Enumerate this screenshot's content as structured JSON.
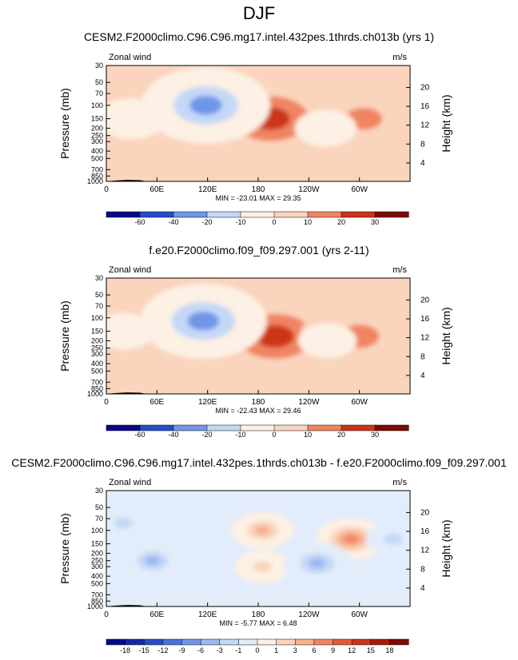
{
  "page": {
    "title": "DJF"
  },
  "chart_data": [
    {
      "type": "heatmap",
      "title": "CESM2.F2000climo.C96.C96.mg17.intel.432pes.1thrds.ch013b (yrs 1)",
      "variable": "Zonal wind",
      "units": "m/s",
      "xlabel": "",
      "ylabel": "Pressure (mb)",
      "ylabel_right": "Height (km)",
      "x_ticks": [
        "0",
        "60E",
        "120E",
        "180",
        "120W",
        "60W"
      ],
      "y_ticks": [
        "30",
        "50",
        "70",
        "100",
        "150",
        "200",
        "250",
        "300",
        "400",
        "500",
        "700",
        "850",
        "1000"
      ],
      "y_ticks_right": [
        "20",
        "16",
        "12",
        "8",
        "4"
      ],
      "y_scale": "log",
      "ylim": [
        1000,
        30
      ],
      "stats": "MIN = -23.01  MAX = 29.35",
      "colorbar_levels": [
        "-60",
        "-40",
        "-20",
        "-10",
        "0",
        "10",
        "20",
        "30"
      ],
      "features": [
        {
          "lon": 195,
          "p": 150,
          "value": 29.35,
          "kind": "max"
        },
        {
          "lon": 305,
          "p": 150,
          "value": 18,
          "kind": "max"
        },
        {
          "lon": 118,
          "p": 100,
          "value": -23.01,
          "kind": "min"
        },
        {
          "lon": 30,
          "p": 150,
          "value": -6,
          "kind": "min"
        },
        {
          "lon": 260,
          "p": 200,
          "value": -4,
          "kind": "min"
        },
        {
          "lon": 110,
          "p": 700,
          "value": 5,
          "kind": "max"
        }
      ]
    },
    {
      "type": "heatmap",
      "title": "f.e20.F2000climo.f09_f09.297.001 (yrs 2-11)",
      "variable": "Zonal wind",
      "units": "m/s",
      "xlabel": "",
      "ylabel": "Pressure (mb)",
      "ylabel_right": "Height (km)",
      "x_ticks": [
        "0",
        "60E",
        "120E",
        "180",
        "120W",
        "60W"
      ],
      "y_ticks": [
        "30",
        "50",
        "70",
        "100",
        "150",
        "200",
        "250",
        "300",
        "400",
        "500",
        "700",
        "850",
        "1000"
      ],
      "y_ticks_right": [
        "20",
        "16",
        "12",
        "8",
        "4"
      ],
      "y_scale": "log",
      "ylim": [
        1000,
        30
      ],
      "stats": "MIN = -22.43  MAX = 29.46",
      "colorbar_levels": [
        "-60",
        "-40",
        "-20",
        "-10",
        "0",
        "10",
        "20",
        "30"
      ],
      "features": [
        {
          "lon": 200,
          "p": 175,
          "value": 29.46,
          "kind": "max"
        },
        {
          "lon": 300,
          "p": 175,
          "value": 20,
          "kind": "max"
        },
        {
          "lon": 115,
          "p": 110,
          "value": -22.43,
          "kind": "min"
        },
        {
          "lon": 20,
          "p": 150,
          "value": -4,
          "kind": "min"
        },
        {
          "lon": 262,
          "p": 200,
          "value": -3,
          "kind": "min"
        },
        {
          "lon": 105,
          "p": 650,
          "value": 4,
          "kind": "max"
        }
      ]
    },
    {
      "type": "heatmap",
      "title": "CESM2.F2000climo.C96.C96.mg17.intel.432pes.1thrds.ch013b - f.e20.F2000climo.f09_f09.297.001",
      "variable": "Zonal wind",
      "units": "m/s",
      "xlabel": "",
      "ylabel": "Pressure (mb)",
      "ylabel_right": "Height (km)",
      "x_ticks": [
        "0",
        "60E",
        "120E",
        "180",
        "120W",
        "60W"
      ],
      "y_ticks": [
        "30",
        "50",
        "70",
        "100",
        "150",
        "200",
        "250",
        "300",
        "400",
        "500",
        "700",
        "850",
        "1000"
      ],
      "y_ticks_right": [
        "20",
        "16",
        "12",
        "8",
        "4"
      ],
      "y_scale": "log",
      "ylim": [
        1000,
        30
      ],
      "stats": "MIN = -5.77  MAX =  6.48",
      "colorbar_levels": [
        "-18",
        "-15",
        "-12",
        "-9",
        "-6",
        "-3",
        "-1",
        "0",
        "1",
        "3",
        "6",
        "9",
        "12",
        "15",
        "18"
      ],
      "features": [
        {
          "lon": 185,
          "p": 100,
          "value": 4,
          "kind": "max"
        },
        {
          "lon": 185,
          "p": 300,
          "value": 2,
          "kind": "max"
        },
        {
          "lon": 290,
          "p": 130,
          "value": 6.48,
          "kind": "max"
        },
        {
          "lon": 55,
          "p": 250,
          "value": -4,
          "kind": "min"
        },
        {
          "lon": 250,
          "p": 270,
          "value": -5.77,
          "kind": "min"
        },
        {
          "lon": 340,
          "p": 130,
          "value": -2,
          "kind": "min"
        },
        {
          "lon": 20,
          "p": 80,
          "value": -2,
          "kind": "min"
        }
      ]
    }
  ],
  "colors": {
    "palette": [
      "#08088a",
      "#1428a8",
      "#2a4cc8",
      "#4a72dc",
      "#7096e8",
      "#9cb8f0",
      "#c4d8f6",
      "#e2ecfa",
      "#fdf0e4",
      "#fad4bc",
      "#f6b090",
      "#f08462",
      "#e45a38",
      "#cc3418",
      "#a81a0a",
      "#7e0a04"
    ]
  }
}
